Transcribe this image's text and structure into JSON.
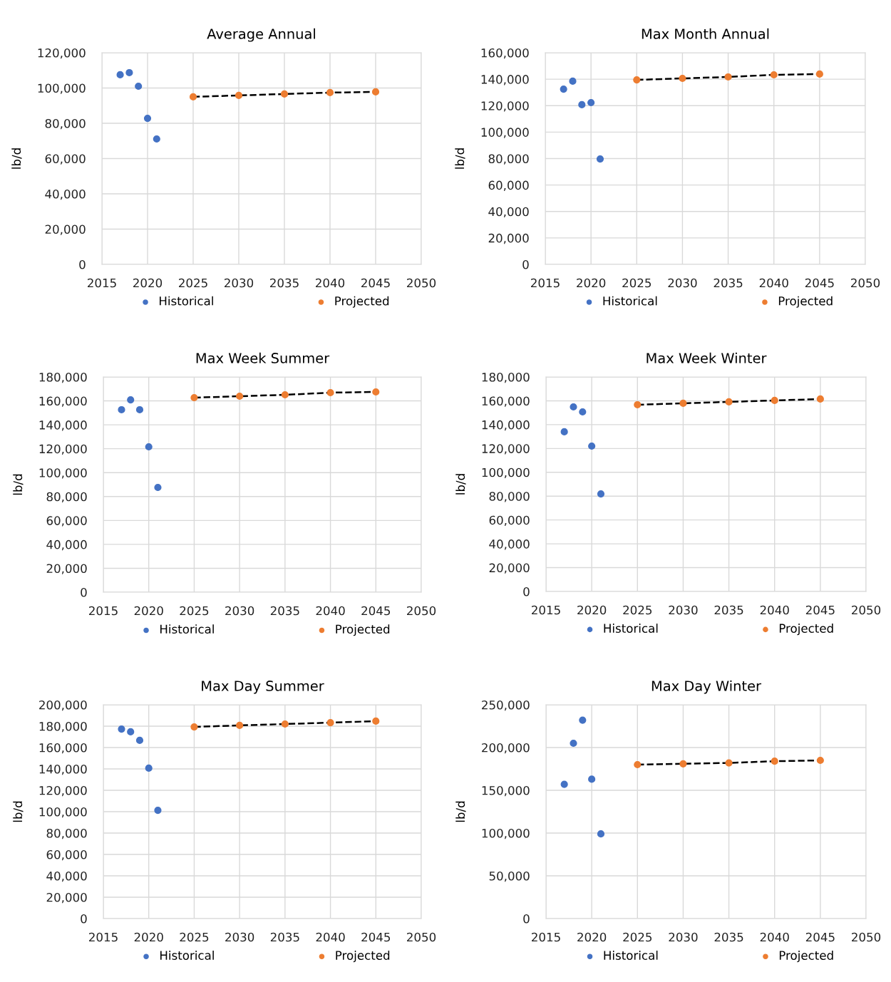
{
  "chart_data": [
    {
      "type": "scatter",
      "title": "Average Annual",
      "ylabel": "lb/d",
      "xlim": [
        2015,
        2050
      ],
      "xticks": [
        2015,
        2020,
        2025,
        2030,
        2035,
        2040,
        2045,
        2050
      ],
      "ylim": [
        0,
        120000
      ],
      "yticks": [
        {
          "value": 0,
          "label": "0"
        },
        {
          "value": 20000,
          "label": "20,000"
        },
        {
          "value": 40000,
          "label": "40,000"
        },
        {
          "value": 60000,
          "label": "60,000"
        },
        {
          "value": 80000,
          "label": "80,000"
        },
        {
          "value": 100000,
          "label": "100,000"
        },
        {
          "value": 120000,
          "label": "120,000"
        }
      ],
      "grid": true,
      "legend": "bottom",
      "marker": "circle",
      "series": [
        {
          "name": "Historical",
          "color": "#4472c4",
          "x": [
            2017,
            2018,
            2019,
            2020,
            2021
          ],
          "values": [
            107500,
            108700,
            101000,
            82800,
            71100
          ]
        },
        {
          "name": "Projected",
          "color": "#ed7d31",
          "x": [
            2025,
            2030,
            2035,
            2040,
            2045
          ],
          "values": [
            95000,
            95800,
            96600,
            97400,
            97800
          ]
        },
        {
          "type": "line",
          "color": "#000000",
          "line_style": "dashed",
          "marker": "none",
          "x": [
            2025,
            2030,
            2035,
            2040,
            2045
          ],
          "values": [
            95000,
            95800,
            96600,
            97400,
            97800
          ]
        }
      ]
    },
    {
      "type": "scatter",
      "title": "Max Month Annual",
      "ylabel": "lb/d",
      "xlim": [
        2015,
        2050
      ],
      "xticks": [
        2015,
        2020,
        2025,
        2030,
        2035,
        2040,
        2045,
        2050
      ],
      "ylim": [
        0,
        160000
      ],
      "yticks": [
        {
          "value": 0,
          "label": "0"
        },
        {
          "value": 20000,
          "label": "20,000"
        },
        {
          "value": 40000,
          "label": "40,000"
        },
        {
          "value": 60000,
          "label": "60,000"
        },
        {
          "value": 80000,
          "label": "80,000"
        },
        {
          "value": 100000,
          "label": "100,000"
        },
        {
          "value": 120000,
          "label": "120,000"
        },
        {
          "value": 140000,
          "label": "140,000"
        },
        {
          "value": 160000,
          "label": "160,000"
        }
      ],
      "grid": true,
      "legend": "bottom",
      "marker": "circle",
      "series": [
        {
          "name": "Historical",
          "color": "#4472c4",
          "x": [
            2017,
            2018,
            2019,
            2020,
            2021
          ],
          "values": [
            132500,
            138500,
            120700,
            122300,
            79700
          ]
        },
        {
          "name": "Projected",
          "color": "#ed7d31",
          "x": [
            2025,
            2030,
            2035,
            2040,
            2045
          ],
          "values": [
            139500,
            140600,
            141700,
            143300,
            143900
          ]
        },
        {
          "type": "line",
          "color": "#000000",
          "line_style": "dashed",
          "marker": "none",
          "x": [
            2025,
            2030,
            2035,
            2040,
            2045
          ],
          "values": [
            139500,
            140600,
            141700,
            143300,
            143900
          ]
        }
      ]
    },
    {
      "type": "scatter",
      "title": "Max Week Summer",
      "ylabel": "lb/d",
      "xlim": [
        2015,
        2050
      ],
      "xticks": [
        2015,
        2020,
        2025,
        2030,
        2035,
        2040,
        2045,
        2050
      ],
      "ylim": [
        0,
        180000
      ],
      "yticks": [
        {
          "value": 0,
          "label": "0"
        },
        {
          "value": 20000,
          "label": "20,000"
        },
        {
          "value": 40000,
          "label": "40,000"
        },
        {
          "value": 60000,
          "label": "60,000"
        },
        {
          "value": 80000,
          "label": "80,000"
        },
        {
          "value": 100000,
          "label": "100,000"
        },
        {
          "value": 120000,
          "label": "120,000"
        },
        {
          "value": 140000,
          "label": "140,000"
        },
        {
          "value": 160000,
          "label": "160,000"
        },
        {
          "value": 180000,
          "label": "180,000"
        }
      ],
      "grid": true,
      "legend": "bottom",
      "marker": "circle",
      "series": [
        {
          "name": "Historical",
          "color": "#4472c4",
          "x": [
            2017,
            2018,
            2019,
            2020,
            2021
          ],
          "values": [
            152600,
            160900,
            152600,
            121600,
            87600
          ]
        },
        {
          "name": "Projected",
          "color": "#ed7d31",
          "x": [
            2025,
            2030,
            2035,
            2040,
            2045
          ],
          "values": [
            162700,
            163900,
            165100,
            166900,
            167500
          ]
        },
        {
          "type": "line",
          "color": "#000000",
          "line_style": "dashed",
          "marker": "none",
          "x": [
            2025,
            2030,
            2035,
            2040,
            2045
          ],
          "values": [
            162700,
            163900,
            165100,
            166900,
            167500
          ]
        }
      ]
    },
    {
      "type": "scatter",
      "title": "Max Week Winter",
      "ylabel": "lb/d",
      "xlim": [
        2015,
        2050
      ],
      "xticks": [
        2015,
        2020,
        2025,
        2030,
        2035,
        2040,
        2045,
        2050
      ],
      "ylim": [
        0,
        180000
      ],
      "yticks": [
        {
          "value": 0,
          "label": "0"
        },
        {
          "value": 20000,
          "label": "20,000"
        },
        {
          "value": 40000,
          "label": "40,000"
        },
        {
          "value": 60000,
          "label": "60,000"
        },
        {
          "value": 80000,
          "label": "80,000"
        },
        {
          "value": 100000,
          "label": "100,000"
        },
        {
          "value": 120000,
          "label": "120,000"
        },
        {
          "value": 140000,
          "label": "140,000"
        },
        {
          "value": 160000,
          "label": "160,000"
        },
        {
          "value": 180000,
          "label": "180,000"
        }
      ],
      "grid": true,
      "legend": "bottom",
      "marker": "circle",
      "series": [
        {
          "name": "Historical",
          "color": "#4472c4",
          "x": [
            2017,
            2018,
            2019,
            2020,
            2021
          ],
          "values": [
            134000,
            154900,
            150700,
            122000,
            81900
          ]
        },
        {
          "name": "Projected",
          "color": "#ed7d31",
          "x": [
            2025,
            2030,
            2035,
            2040,
            2045
          ],
          "values": [
            156700,
            157900,
            159100,
            160300,
            161500
          ]
        },
        {
          "type": "line",
          "color": "#000000",
          "line_style": "dashed",
          "marker": "none",
          "x": [
            2025,
            2030,
            2035,
            2040,
            2045
          ],
          "values": [
            156700,
            157900,
            159100,
            160300,
            161500
          ]
        }
      ]
    },
    {
      "type": "scatter",
      "title": "Max Day Summer",
      "ylabel": "lb/d",
      "xlim": [
        2015,
        2050
      ],
      "xticks": [
        2015,
        2020,
        2025,
        2030,
        2035,
        2040,
        2045,
        2050
      ],
      "ylim": [
        0,
        200000
      ],
      "yticks": [
        {
          "value": 0,
          "label": "0"
        },
        {
          "value": 20000,
          "label": "20,000"
        },
        {
          "value": 40000,
          "label": "40,000"
        },
        {
          "value": 60000,
          "label": "60,000"
        },
        {
          "value": 80000,
          "label": "80,000"
        },
        {
          "value": 100000,
          "label": "100,000"
        },
        {
          "value": 120000,
          "label": "120,000"
        },
        {
          "value": 140000,
          "label": "140,000"
        },
        {
          "value": 160000,
          "label": "160,000"
        },
        {
          "value": 180000,
          "label": "180,000"
        },
        {
          "value": 200000,
          "label": "200,000"
        }
      ],
      "grid": true,
      "legend": "bottom",
      "marker": "circle",
      "series": [
        {
          "name": "Historical",
          "color": "#4472c4",
          "x": [
            2017,
            2018,
            2019,
            2020,
            2021
          ],
          "values": [
            177300,
            174700,
            166700,
            140700,
            101300
          ]
        },
        {
          "name": "Projected",
          "color": "#ed7d31",
          "x": [
            2025,
            2030,
            2035,
            2040,
            2045
          ],
          "values": [
            179300,
            180700,
            182000,
            183300,
            184700
          ]
        },
        {
          "type": "line",
          "color": "#000000",
          "line_style": "dashed",
          "marker": "none",
          "x": [
            2025,
            2030,
            2035,
            2040,
            2045
          ],
          "values": [
            179300,
            180700,
            182000,
            183300,
            184700
          ]
        }
      ]
    },
    {
      "type": "scatter",
      "title": "Max Day Winter",
      "ylabel": "lb/d",
      "xlim": [
        2015,
        2050
      ],
      "xticks": [
        2015,
        2020,
        2025,
        2030,
        2035,
        2040,
        2045,
        2050
      ],
      "ylim": [
        0,
        250000
      ],
      "yticks": [
        {
          "value": 0,
          "label": "0"
        },
        {
          "value": 50000,
          "label": "50,000"
        },
        {
          "value": 100000,
          "label": "100,000"
        },
        {
          "value": 150000,
          "label": "150,000"
        },
        {
          "value": 200000,
          "label": "200,000"
        },
        {
          "value": 250000,
          "label": "250,000"
        }
      ],
      "grid": true,
      "legend": "bottom",
      "marker": "circle",
      "series": [
        {
          "name": "Historical",
          "color": "#4472c4",
          "x": [
            2017,
            2018,
            2019,
            2020,
            2021
          ],
          "values": [
            157000,
            205000,
            232000,
            163000,
            99000
          ]
        },
        {
          "name": "Projected",
          "color": "#ed7d31",
          "x": [
            2025,
            2030,
            2035,
            2040,
            2045
          ],
          "values": [
            180000,
            181000,
            182000,
            184000,
            185000
          ]
        },
        {
          "type": "line",
          "color": "#000000",
          "line_style": "dashed",
          "marker": "none",
          "x": [
            2025,
            2030,
            2035,
            2040,
            2045
          ],
          "values": [
            180000,
            181000,
            182000,
            184000,
            185000
          ]
        }
      ]
    }
  ]
}
